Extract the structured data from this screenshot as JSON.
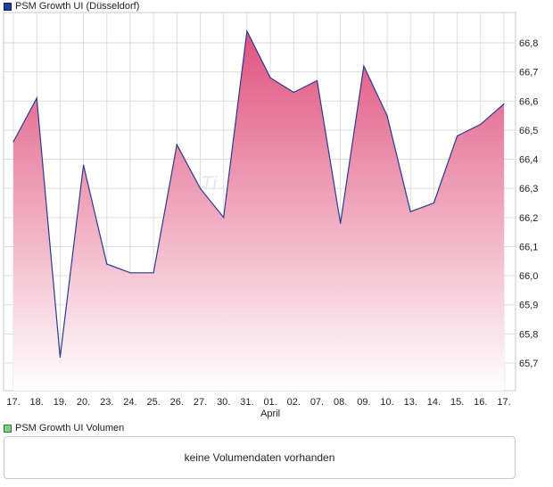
{
  "legend": {
    "price_label": "PSM Growth UI (Düsseldorf)",
    "volume_label": "PSM Growth UI Volumen"
  },
  "volume_message": "keine Volumendaten vorhanden",
  "watermark": "Ti",
  "colors": {
    "line": "#2b3a8f",
    "fill_top": "#e0527f",
    "fill_bottom": "#ffffff",
    "grid": "#dddddd",
    "frame": "#c8c8c8"
  },
  "chart_data": {
    "type": "area",
    "title": "PSM Growth UI (Düsseldorf)",
    "xlabel": "",
    "ylabel": "",
    "month_label": "April",
    "month_label_index": 11,
    "categories": [
      "17.",
      "18.",
      "19.",
      "20.",
      "23.",
      "24.",
      "25.",
      "26.",
      "27.",
      "30.",
      "31.",
      "01.",
      "02.",
      "07.",
      "08.",
      "09.",
      "10.",
      "13.",
      "14.",
      "15.",
      "16.",
      "17."
    ],
    "series": [
      {
        "name": "PSM Growth UI (Düsseldorf)",
        "values": [
          66.46,
          66.61,
          65.72,
          66.38,
          66.04,
          66.01,
          66.01,
          66.45,
          66.3,
          66.2,
          66.84,
          66.68,
          66.63,
          66.67,
          66.18,
          66.72,
          66.55,
          66.22,
          66.25,
          66.48,
          66.52,
          66.59
        ]
      }
    ],
    "yticks": [
      "65,7",
      "65,8",
      "65,9",
      "66,0",
      "66,1",
      "66,2",
      "66,3",
      "66,4",
      "66,5",
      "66,6",
      "66,7",
      "66,8"
    ],
    "ylim": [
      65.6,
      66.88
    ],
    "grid": true,
    "volume": null
  }
}
